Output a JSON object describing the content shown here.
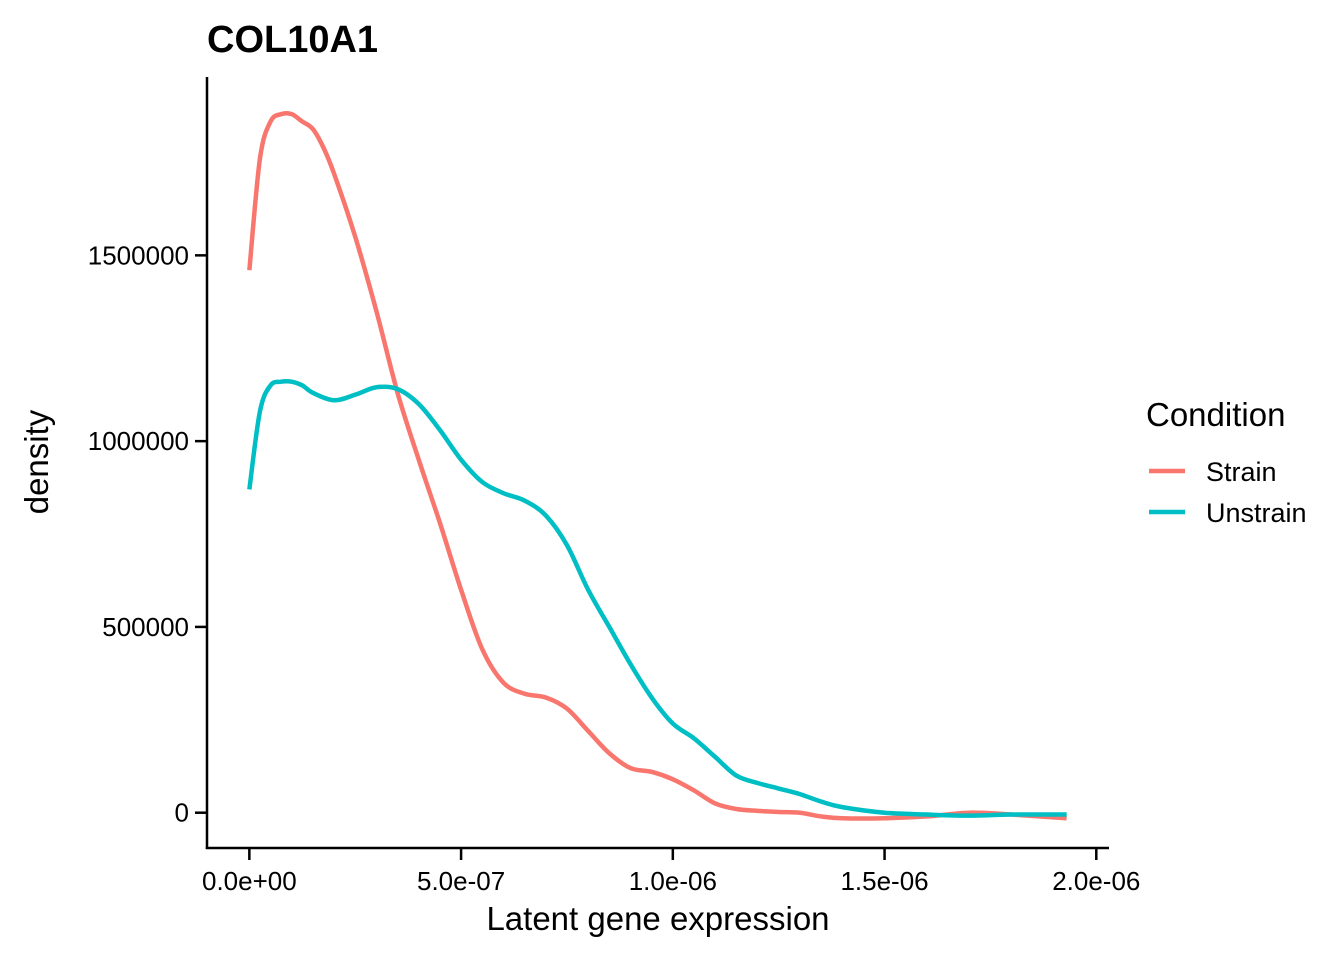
{
  "chart_data": {
    "type": "line",
    "title": "COL10A1",
    "xlabel": "Latent gene expression",
    "ylabel": "density",
    "xlim": [
      -1e-07,
      2.03e-06
    ],
    "ylim": [
      -95000,
      1980000
    ],
    "xticks": [
      0,
      5e-07,
      1e-06,
      1.5e-06,
      2e-06
    ],
    "xtick_labels": [
      "0.0e+00",
      "5.0e-07",
      "1.0e-06",
      "1.5e-06",
      "2.0e-06"
    ],
    "yticks": [
      0,
      500000,
      1000000,
      1500000
    ],
    "ytick_labels": [
      "0",
      "500000",
      "1000000",
      "1500000"
    ],
    "grid": false,
    "legend": {
      "title": "Condition",
      "position": "right"
    },
    "series": [
      {
        "name": "Strain",
        "color": "#F8766D",
        "x": [
          0,
          2.5e-08,
          5e-08,
          7.5e-08,
          1e-07,
          1.25e-07,
          1.5e-07,
          1.75e-07,
          2e-07,
          2.5e-07,
          3e-07,
          3.5e-07,
          4e-07,
          4.5e-07,
          5e-07,
          5.5e-07,
          6e-07,
          6.5e-07,
          7e-07,
          7.5e-07,
          8e-07,
          8.5e-07,
          9e-07,
          9.5e-07,
          1e-06,
          1.05e-06,
          1.1e-06,
          1.15e-06,
          1.2e-06,
          1.25e-06,
          1.3e-06,
          1.35e-06,
          1.4e-06,
          1.5e-06,
          1.6e-06,
          1.7e-06,
          1.8e-06,
          1.93e-06
        ],
        "y": [
          1460000,
          1760000,
          1860000,
          1880000,
          1880000,
          1860000,
          1840000,
          1790000,
          1720000,
          1550000,
          1350000,
          1130000,
          950000,
          780000,
          600000,
          440000,
          350000,
          320000,
          310000,
          280000,
          220000,
          160000,
          120000,
          110000,
          90000,
          60000,
          25000,
          10000,
          5000,
          2000,
          0,
          -10000,
          -15000,
          -15000,
          -10000,
          0,
          -5000,
          -15000
        ]
      },
      {
        "name": "Unstrain",
        "color": "#00BFC4",
        "x": [
          0,
          2.5e-08,
          5e-08,
          7.5e-08,
          1e-07,
          1.25e-07,
          1.5e-07,
          2e-07,
          2.5e-07,
          3e-07,
          3.5e-07,
          4e-07,
          4.5e-07,
          5e-07,
          5.5e-07,
          6e-07,
          6.5e-07,
          7e-07,
          7.5e-07,
          8e-07,
          8.5e-07,
          9e-07,
          9.5e-07,
          1e-06,
          1.05e-06,
          1.1e-06,
          1.15e-06,
          1.2e-06,
          1.25e-06,
          1.3e-06,
          1.35e-06,
          1.4e-06,
          1.5e-06,
          1.6e-06,
          1.7e-06,
          1.8e-06,
          1.93e-06
        ],
        "y": [
          870000,
          1080000,
          1150000,
          1160000,
          1160000,
          1150000,
          1130000,
          1110000,
          1125000,
          1145000,
          1140000,
          1100000,
          1030000,
          950000,
          890000,
          860000,
          840000,
          800000,
          720000,
          600000,
          500000,
          400000,
          310000,
          240000,
          200000,
          150000,
          100000,
          80000,
          65000,
          50000,
          30000,
          15000,
          0,
          -5000,
          -8000,
          -5000,
          -5000
        ]
      }
    ]
  }
}
